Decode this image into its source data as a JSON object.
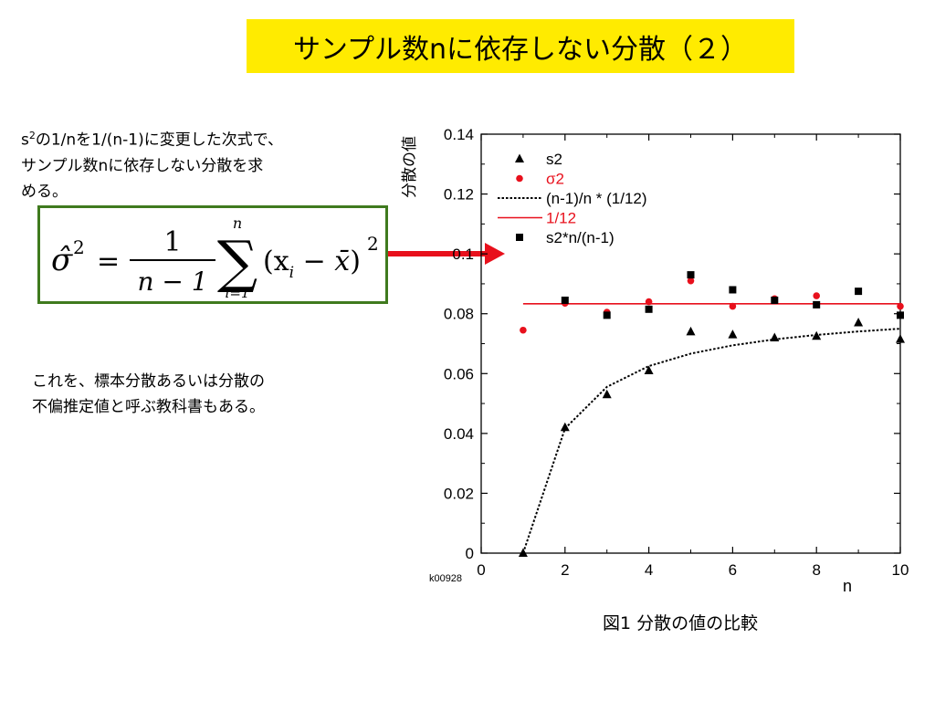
{
  "title": "サンプル数nに依存しない分散（２）",
  "note1": {
    "line1_pre": "s",
    "line1_sup": "2",
    "line1_post": "の1/nを1/(n-1)に変更した次式で、",
    "line2": "サンプル数nに依存しない分散を求",
    "line3": "める。"
  },
  "formula": {
    "lhs": "σ̂",
    "exp": "2",
    "eq": "=",
    "num": "1",
    "den": "n − 1",
    "sum_top": "n",
    "sum_bottom": "i=1",
    "body": "(x",
    "sub_i": "i",
    "minus": " − ",
    "xbar": "x̄",
    "close": ")",
    "exp2": "2"
  },
  "note2": {
    "line1": "これを、標本分散あるいは分散の",
    "line2": "不偏推定値と呼ぶ教科書もある。"
  },
  "caption": "図1 分散の値の比較",
  "watermark": "k00928",
  "colors": {
    "title_bg": "#ffeb00",
    "formula_border": "#3f7a1e",
    "red": "#e8101c",
    "arrow": "#e8101c"
  },
  "chart_data": {
    "type": "scatter",
    "xlabel": "n",
    "ylabel": "分散の値",
    "xlim": [
      0,
      10
    ],
    "ylim": [
      0,
      0.14
    ],
    "xticks": [
      "0",
      "2",
      "4",
      "6",
      "8",
      "10"
    ],
    "yticks": [
      "0",
      "0.02",
      "0.04",
      "0.06",
      "0.08",
      "0.1",
      "0.12",
      "0.14"
    ],
    "legend_position": "top-left",
    "series": [
      {
        "name": "s2",
        "marker": "triangle",
        "color": "#000000",
        "x": [
          1,
          2,
          3,
          4,
          5,
          6,
          7,
          8,
          9,
          10
        ],
        "y": [
          0.0,
          0.042,
          0.053,
          0.061,
          0.074,
          0.073,
          0.072,
          0.0725,
          0.077,
          0.0715
        ]
      },
      {
        "name": "σ2",
        "marker": "circle",
        "color": "#e8101c",
        "x": [
          1,
          2,
          3,
          4,
          5,
          6,
          7,
          8,
          9,
          10
        ],
        "y": [
          0.0745,
          0.0835,
          0.0805,
          0.084,
          0.091,
          0.0825,
          0.085,
          0.086,
          0.0875,
          0.0825
        ]
      },
      {
        "name": "(n-1)/n * (1/12)",
        "marker": "dotted-line",
        "color": "#000000",
        "x": [
          1,
          2,
          3,
          4,
          5,
          6,
          7,
          8,
          9,
          10
        ],
        "y": [
          0.0,
          0.04167,
          0.05556,
          0.0625,
          0.06667,
          0.06944,
          0.07143,
          0.07292,
          0.07407,
          0.075
        ]
      },
      {
        "name": "1/12",
        "marker": "line",
        "color": "#e8101c",
        "x": [
          1,
          10
        ],
        "y": [
          0.08333,
          0.08333
        ]
      },
      {
        "name": "s2*n/(n-1)",
        "marker": "square",
        "color": "#000000",
        "x": [
          2,
          3,
          4,
          5,
          6,
          7,
          8,
          9,
          10
        ],
        "y": [
          0.0845,
          0.0795,
          0.0815,
          0.093,
          0.088,
          0.0845,
          0.083,
          0.0875,
          0.0795
        ]
      }
    ]
  }
}
